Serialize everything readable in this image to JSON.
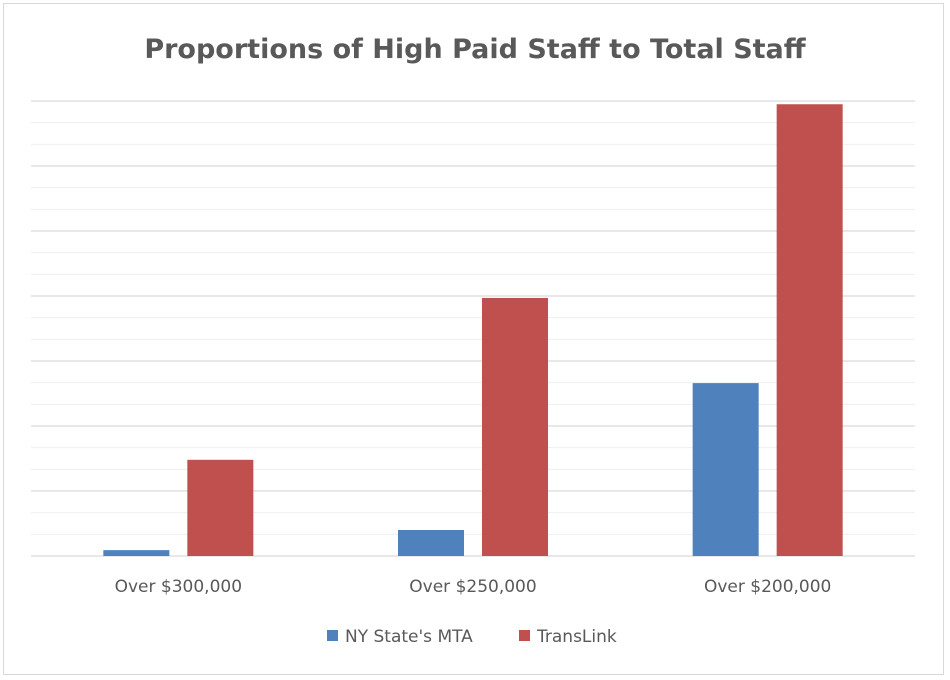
{
  "chart_data": {
    "type": "bar",
    "title": "Proportions of High Paid Staff to Total Staff",
    "xlabel": "",
    "ylabel": "",
    "categories": [
      "Over $300,000",
      "Over $250,000",
      "Over $200,000"
    ],
    "series": [
      {
        "name": "NY State's MTA",
        "color": "#4f81bd",
        "values": [
          0.09,
          0.4,
          2.66
        ]
      },
      {
        "name": "TransLink",
        "color": "#c0504d",
        "values": [
          1.48,
          3.97,
          6.95
        ]
      }
    ],
    "ylim": [
      0,
      7
    ],
    "y_major_step": 1,
    "y_minor_step": 0.3333,
    "grid": true,
    "y_tick_labels_shown": false,
    "legend_position": "bottom"
  }
}
